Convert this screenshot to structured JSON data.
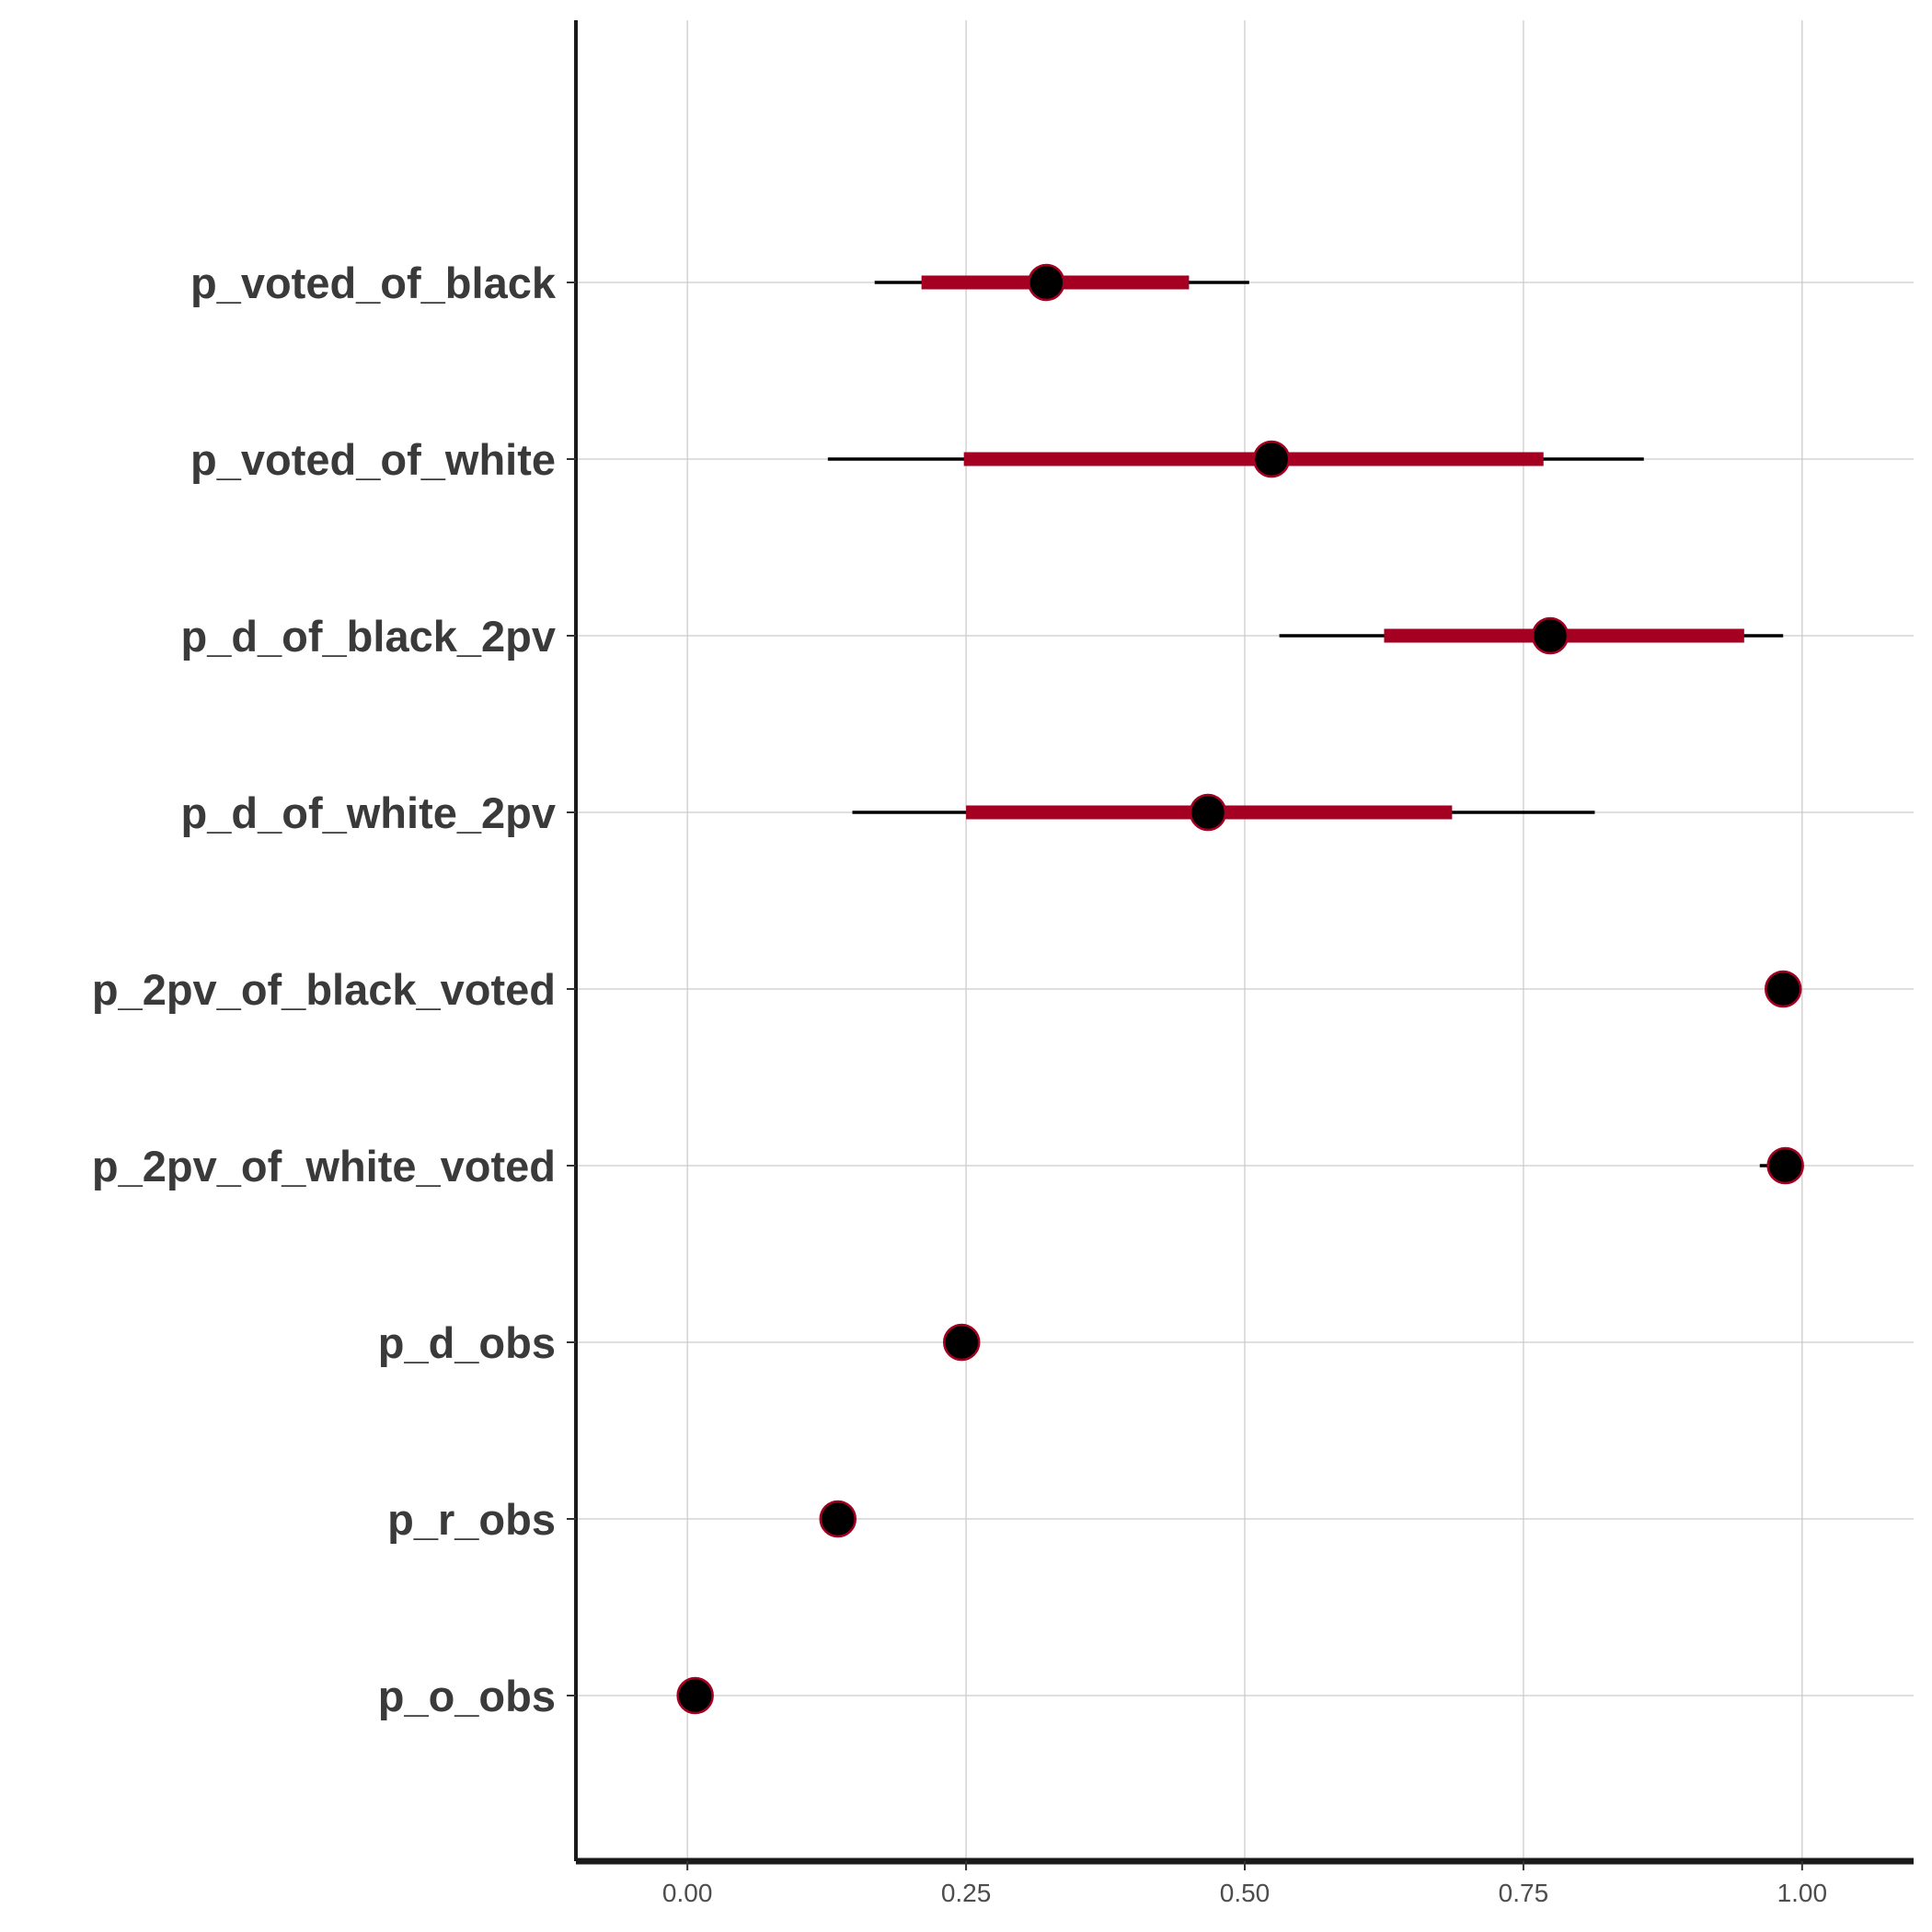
{
  "chart_data": {
    "type": "interval",
    "xlim": [
      -0.1,
      1.1
    ],
    "x_ticks": [
      0.0,
      0.25,
      0.5,
      0.75,
      1.0
    ],
    "x_tick_labels": [
      "0.00",
      "0.25",
      "0.50",
      "0.75",
      "1.00"
    ],
    "grid": true,
    "colors": {
      "inner_interval": "#a50021",
      "outer_interval": "#000000",
      "point_fill": "#000000",
      "point_stroke": "#a50021",
      "grid": "#cccccc",
      "axis": "#1a1a1a"
    },
    "parameters": [
      {
        "name": "p_voted_of_black",
        "point": 0.322,
        "inner": [
          0.21,
          0.45
        ],
        "outer": [
          0.168,
          0.504
        ]
      },
      {
        "name": "p_voted_of_white",
        "point": 0.524,
        "inner": [
          0.248,
          0.768
        ],
        "outer": [
          0.126,
          0.858
        ]
      },
      {
        "name": "p_d_of_black_2pv",
        "point": 0.774,
        "inner": [
          0.625,
          0.948
        ],
        "outer": [
          0.531,
          0.983
        ]
      },
      {
        "name": "p_d_of_white_2pv",
        "point": 0.467,
        "inner": [
          0.25,
          0.686
        ],
        "outer": [
          0.148,
          0.814
        ]
      },
      {
        "name": "p_2pv_of_black_voted",
        "point": 0.983,
        "inner": null,
        "outer": null
      },
      {
        "name": "p_2pv_of_white_voted",
        "point": 0.985,
        "inner": null,
        "outer": [
          0.962,
          0.995
        ]
      },
      {
        "name": "p_d_obs",
        "point": 0.246,
        "inner": null,
        "outer": null
      },
      {
        "name": "p_r_obs",
        "point": 0.135,
        "inner": null,
        "outer": null
      },
      {
        "name": "p_o_obs",
        "point": 0.007,
        "inner": null,
        "outer": null
      }
    ]
  }
}
